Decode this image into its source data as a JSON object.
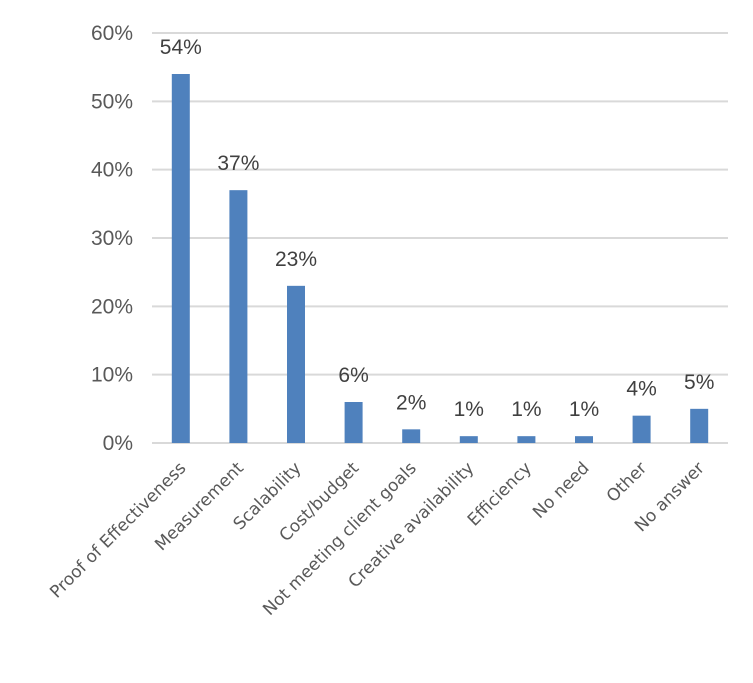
{
  "chart_data": {
    "type": "bar",
    "categories": [
      "Proof of Effectiveness",
      "Measurement",
      "Scalability",
      "Cost/budget",
      "Not meeting client goals",
      "Creative availability",
      "Efficiency",
      "No need",
      "Other",
      "No answer"
    ],
    "values": [
      54,
      37,
      23,
      6,
      2,
      1,
      1,
      1,
      4,
      5
    ],
    "data_labels": [
      "54%",
      "37%",
      "23%",
      "6%",
      "2%",
      "1%",
      "1%",
      "1%",
      "4%",
      "5%"
    ],
    "yticks": [
      0,
      10,
      20,
      30,
      40,
      50,
      60
    ],
    "ytick_labels": [
      "0%",
      "10%",
      "20%",
      "30%",
      "40%",
      "50%",
      "60%"
    ],
    "ylim": [
      0,
      60
    ],
    "grid": true,
    "legend": "none",
    "bar_color": "#4f81bd",
    "grid_color": "#d9d9d9"
  }
}
